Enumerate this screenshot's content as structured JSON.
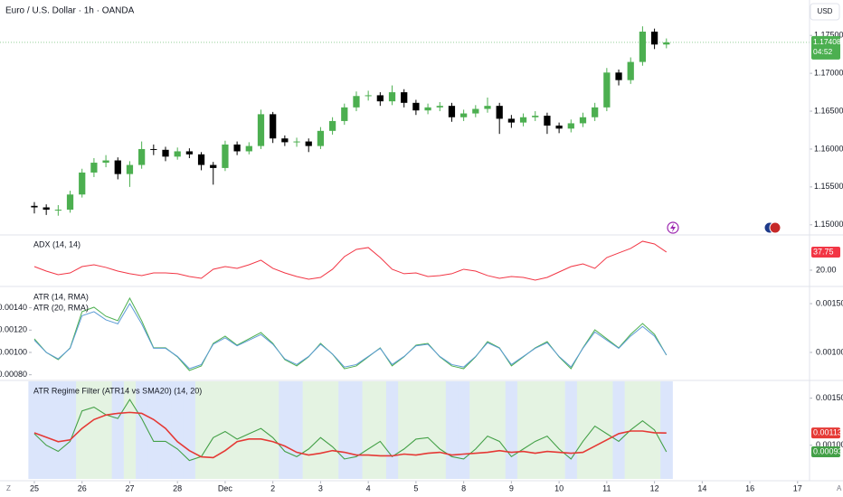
{
  "header": {
    "symbol": "Euro / U.S. Dollar · 1h · OANDA",
    "currency": "USD",
    "footer_left": "Z",
    "footer_right": "A"
  },
  "chart_data": [
    {
      "type": "candlestick",
      "x": [
        0,
        0.25,
        0.5,
        0.75,
        1,
        1.25,
        1.5,
        1.75,
        2,
        2.25,
        2.5,
        2.75,
        3,
        3.25,
        3.5,
        3.75,
        4,
        4.25,
        4.5,
        4.75,
        5,
        5.25,
        5.5,
        5.75,
        6,
        6.25,
        6.5,
        6.75,
        7,
        7.25,
        7.5,
        7.75,
        8,
        8.25,
        8.5,
        8.75,
        9,
        9.25,
        9.5,
        9.75,
        10,
        10.25,
        10.5,
        10.75,
        11,
        11.25,
        11.5,
        11.75,
        12,
        12.25,
        12.5,
        12.75,
        13,
        13.25
      ],
      "open": [
        1.1525,
        1.1523,
        1.152,
        1.152,
        1.154,
        1.1569,
        1.1582,
        1.1585,
        1.1567,
        1.1579,
        1.16,
        1.1599,
        1.159,
        1.1597,
        1.1593,
        1.1579,
        1.1575,
        1.1606,
        1.1597,
        1.1604,
        1.1646,
        1.1614,
        1.1609,
        1.161,
        1.1604,
        1.1624,
        1.1637,
        1.1655,
        1.167,
        1.1671,
        1.1663,
        1.1675,
        1.1661,
        1.1651,
        1.1655,
        1.1657,
        1.1642,
        1.1647,
        1.1653,
        1.1657,
        1.164,
        1.1635,
        1.1642,
        1.1644,
        1.1631,
        1.1627,
        1.1634,
        1.1642,
        1.1655,
        1.1701,
        1.1691,
        1.1715,
        1.1755,
        1.1738
      ],
      "high": [
        1.153,
        1.1527,
        1.1526,
        1.1545,
        1.1574,
        1.1588,
        1.1592,
        1.1589,
        1.1584,
        1.161,
        1.1606,
        1.1603,
        1.1602,
        1.1601,
        1.1596,
        1.1583,
        1.1611,
        1.161,
        1.1609,
        1.1652,
        1.1649,
        1.1618,
        1.1615,
        1.1614,
        1.1629,
        1.1642,
        1.166,
        1.1676,
        1.1677,
        1.1675,
        1.1684,
        1.1679,
        1.1665,
        1.166,
        1.1662,
        1.1661,
        1.1652,
        1.1658,
        1.1668,
        1.1661,
        1.1645,
        1.1647,
        1.165,
        1.1648,
        1.1635,
        1.1639,
        1.1648,
        1.1661,
        1.1707,
        1.1705,
        1.1721,
        1.1762,
        1.1759,
        1.1746
      ],
      "low": [
        1.1515,
        1.1513,
        1.1512,
        1.1516,
        1.1536,
        1.1563,
        1.1576,
        1.156,
        1.155,
        1.1574,
        1.1592,
        1.1584,
        1.1586,
        1.1588,
        1.1572,
        1.1553,
        1.1571,
        1.1592,
        1.1593,
        1.16,
        1.1608,
        1.1604,
        1.1603,
        1.1596,
        1.16,
        1.1619,
        1.1632,
        1.165,
        1.1664,
        1.1657,
        1.1658,
        1.1655,
        1.1645,
        1.1646,
        1.165,
        1.1636,
        1.1637,
        1.1642,
        1.1648,
        1.162,
        1.1628,
        1.163,
        1.1637,
        1.162,
        1.1621,
        1.1622,
        1.1629,
        1.1637,
        1.165,
        1.1684,
        1.1686,
        1.171,
        1.1732,
        1.1733
      ],
      "close": [
        1.1523,
        1.152,
        1.152,
        1.154,
        1.1569,
        1.1582,
        1.1585,
        1.1567,
        1.1579,
        1.16,
        1.1599,
        1.159,
        1.1597,
        1.1593,
        1.1579,
        1.1575,
        1.1606,
        1.1597,
        1.1604,
        1.1646,
        1.1614,
        1.1609,
        1.161,
        1.1604,
        1.1624,
        1.1637,
        1.1655,
        1.167,
        1.1671,
        1.1663,
        1.1675,
        1.1661,
        1.1651,
        1.1655,
        1.1657,
        1.1642,
        1.1647,
        1.1653,
        1.1657,
        1.164,
        1.1635,
        1.1642,
        1.1644,
        1.1631,
        1.1627,
        1.1634,
        1.1642,
        1.1655,
        1.1701,
        1.1691,
        1.1715,
        1.1755,
        1.1738,
        1.17408
      ],
      "up_color": "#4caf50",
      "down_color": "#000000",
      "countdown": "04:52",
      "ylim": [
        1.1489,
        1.1792
      ],
      "yticks": [
        {
          "value": 1.15,
          "label": "1.15000"
        },
        {
          "value": 1.155,
          "label": "1.15500"
        },
        {
          "value": 1.16,
          "label": "1.16000"
        },
        {
          "value": 1.165,
          "label": "1.16500"
        },
        {
          "value": 1.17,
          "label": "1.17000"
        },
        {
          "value": 1.175,
          "label": "1.17500"
        }
      ],
      "xlim": [
        -0.72,
        16.25
      ],
      "xticks": [
        {
          "value": 0,
          "label": "25"
        },
        {
          "value": 1,
          "label": "26"
        },
        {
          "value": 2,
          "label": "27"
        },
        {
          "value": 3,
          "label": "28"
        },
        {
          "value": 4,
          "label": "Dec"
        },
        {
          "value": 5,
          "label": "2"
        },
        {
          "value": 6,
          "label": "3"
        },
        {
          "value": 7,
          "label": "4"
        },
        {
          "value": 8,
          "label": "5"
        },
        {
          "value": 9,
          "label": "8"
        },
        {
          "value": 10,
          "label": "9"
        },
        {
          "value": 11,
          "label": "10"
        },
        {
          "value": 12,
          "label": "11"
        },
        {
          "value": 13,
          "label": "12"
        },
        {
          "value": 14,
          "label": "14"
        },
        {
          "value": 15,
          "label": "16"
        },
        {
          "value": 16,
          "label": "17"
        }
      ]
    },
    {
      "type": "line",
      "title": "ADX (14, 14)",
      "series": [
        {
          "color": "#f23645",
          "values": [
            23.5,
            19.1,
            15.6,
            17.3,
            23.5,
            25.3,
            22.7,
            19.1,
            16.5,
            14.7,
            17.3,
            17.3,
            16.5,
            13.8,
            12.0,
            20.9,
            23.5,
            21.8,
            25.3,
            29.8,
            21.8,
            17.3,
            13.8,
            11.1,
            12.9,
            20.9,
            33.3,
            40.4,
            42.2,
            32.4,
            20.9,
            16.5,
            17.3,
            13.8,
            14.7,
            16.5,
            20.9,
            19.1,
            14.7,
            12.0,
            13.8,
            12.9,
            10.2,
            12.9,
            18.2,
            23.5,
            26.2,
            21.8,
            32.4,
            36.9,
            41.3,
            48.4,
            45.7,
            37.75
          ]
        }
      ],
      "ylim": [
        4.9,
        52.8
      ],
      "yticks": [
        {
          "value": 20,
          "label": "20.00"
        }
      ]
    },
    {
      "type": "line",
      "series": [
        {
          "name": "ATR (14, RMA)",
          "color": "#4caf50",
          "values": [
            0.001122,
            0.001,
            0.000935,
            0.001041,
            0.001365,
            0.001405,
            0.001324,
            0.001284,
            0.001486,
            0.001284,
            0.001041,
            0.001041,
            0.00096,
            0.000838,
            0.000879,
            0.001081,
            0.001146,
            0.001065,
            0.001122,
            0.001178,
            0.001081,
            0.000935,
            0.000879,
            0.00096,
            0.001081,
            0.000984,
            0.000854,
            0.000879,
            0.00096,
            0.001041,
            0.000879,
            0.00096,
            0.001065,
            0.001081,
            0.00096,
            0.000879,
            0.000854,
            0.00096,
            0.001097,
            0.001041,
            0.000879,
            0.00096,
            0.001041,
            0.001097,
            0.00096,
            0.000854,
            0.001041,
            0.001203,
            0.001122,
            0.001041,
            0.001162,
            0.001259,
            0.001162,
            0.000976
          ]
        },
        {
          "name": "ATR (20, RMA)",
          "color": "#5b9bd5",
          "values": [
            0.00111,
            0.001,
            0.000942,
            0.001037,
            0.001329,
            0.001365,
            0.001292,
            0.001256,
            0.001437,
            0.001256,
            0.001037,
            0.001037,
            0.000964,
            0.000854,
            0.000891,
            0.001073,
            0.001131,
            0.001059,
            0.00111,
            0.00116,
            0.001073,
            0.000942,
            0.000891,
            0.000964,
            0.001073,
            0.000986,
            0.000869,
            0.000891,
            0.000964,
            0.001037,
            0.000891,
            0.000964,
            0.001059,
            0.001073,
            0.000964,
            0.000891,
            0.000869,
            0.000964,
            0.001087,
            0.001037,
            0.000891,
            0.000964,
            0.001037,
            0.001087,
            0.000964,
            0.000869,
            0.001037,
            0.001183,
            0.00111,
            0.001037,
            0.001146,
            0.001233,
            0.001146,
            0.000978
          ]
        }
      ],
      "ylim": [
        0.000757,
        0.001583
      ],
      "yticks": [
        {
          "value": 0.0008,
          "label": "0.00080"
        },
        {
          "value": 0.001,
          "label": "0.00100"
        },
        {
          "value": 0.0012,
          "label": "0.00120"
        },
        {
          "value": 0.0014,
          "label": "0.00140"
        }
      ],
      "y2lim": [
        0.000722,
        0.001667
      ],
      "y2ticks": [
        {
          "value": 0.001,
          "label": "0.00100"
        },
        {
          "value": 0.0015,
          "label": "0.00150"
        }
      ]
    },
    {
      "type": "regime",
      "title": "ATR Regime Filter (ATR14 vs SMA20) (14, 20)",
      "series": [
        {
          "color": "#43a047",
          "values": [
            0.001122,
            0.001,
            0.000935,
            0.001041,
            0.001365,
            0.001405,
            0.001324,
            0.001284,
            0.001486,
            0.001284,
            0.001041,
            0.001041,
            0.00096,
            0.000838,
            0.000879,
            0.001081,
            0.001146,
            0.001065,
            0.001122,
            0.001178,
            0.001081,
            0.000935,
            0.000879,
            0.00096,
            0.001081,
            0.000984,
            0.000854,
            0.000879,
            0.00096,
            0.001041,
            0.000879,
            0.00096,
            0.001065,
            0.001081,
            0.00096,
            0.000879,
            0.000854,
            0.00096,
            0.001097,
            0.001041,
            0.000879,
            0.00096,
            0.001041,
            0.001097,
            0.00096,
            0.000854,
            0.001041,
            0.001203,
            0.001122,
            0.001041,
            0.001162,
            0.001259,
            0.001162,
            0.00093
          ]
        },
        {
          "color": "#e53935",
          "values": [
            0.001132,
            0.001085,
            0.001038,
            0.001057,
            0.001179,
            0.001273,
            0.001321,
            0.001339,
            0.001349,
            0.001339,
            0.001273,
            0.001179,
            0.001038,
            0.000943,
            0.000877,
            0.000868,
            0.000943,
            0.001038,
            0.001066,
            0.001066,
            0.001038,
            0.000991,
            0.000925,
            0.000896,
            0.000915,
            0.000943,
            0.000925,
            0.000896,
            0.000896,
            0.000887,
            0.000887,
            0.000906,
            0.000896,
            0.000915,
            0.000925,
            0.000896,
            0.000906,
            0.000915,
            0.000925,
            0.000943,
            0.000925,
            0.000934,
            0.000915,
            0.000934,
            0.000925,
            0.000915,
            0.000925,
            0.000991,
            0.001057,
            0.001123,
            0.001151,
            0.001151,
            0.001132,
            0.00113
          ]
        }
      ],
      "above_color": "#e4f3e2",
      "below_color": "#dbe5fb",
      "ylim": [
        0.000642,
        0.001679
      ],
      "yticks": [
        {
          "value": 0.001,
          "label": "0.00100"
        },
        {
          "value": 0.0015,
          "label": "0.00150"
        }
      ]
    }
  ]
}
